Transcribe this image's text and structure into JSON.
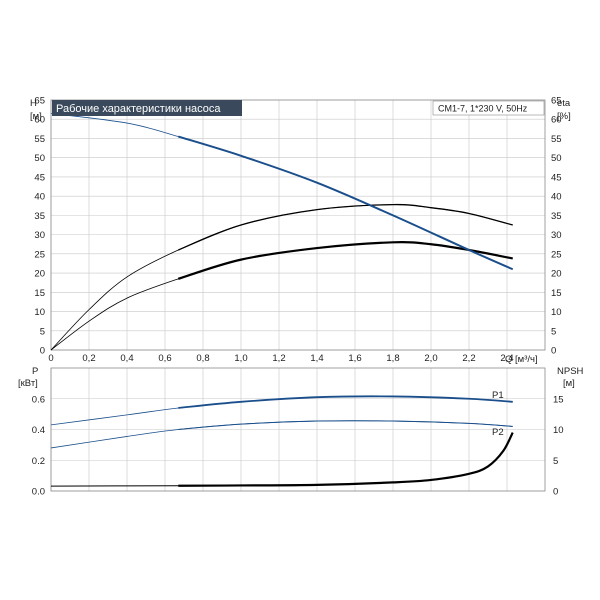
{
  "chart_data": [
    {
      "type": "line",
      "title": "Рабочие характеристики насоса",
      "model_label": "CM1-7, 1*230 V, 50Hz",
      "left_axis": {
        "label": "H",
        "unit": "[м]",
        "ylim": [
          0,
          65
        ],
        "ticks": [
          "0",
          "5",
          "10",
          "15",
          "20",
          "25",
          "30",
          "35",
          "40",
          "45",
          "50",
          "55",
          "60",
          "65"
        ]
      },
      "right_axis": {
        "label": "eta",
        "unit": "[%]",
        "ylim": [
          0,
          65
        ],
        "ticks": [
          "0",
          "5",
          "10",
          "15",
          "20",
          "25",
          "30",
          "35",
          "40",
          "45",
          "50",
          "55",
          "60",
          "65"
        ]
      },
      "x_axis": {
        "label": "Q [м³/ч]",
        "xlim": [
          0,
          2.6
        ],
        "ticks": [
          "0",
          "0,2",
          "0,4",
          "0,6",
          "0,8",
          "1,0",
          "1,2",
          "1,4",
          "1,6",
          "1,8",
          "2,0",
          "2,2",
          "2,4"
        ]
      },
      "grid": true,
      "series": [
        {
          "name": "",
          "axis": "left",
          "color": "#1a4f8c",
          "x": [
            0,
            0.4,
            0.67,
            1.0,
            1.4,
            1.8,
            2.2,
            2.43
          ],
          "y": [
            61.5,
            59.0,
            55.5,
            50.5,
            43.5,
            35.0,
            26.0,
            21.0
          ]
        },
        {
          "name": "",
          "axis": "right",
          "color": "#000000",
          "x": [
            0,
            0.2,
            0.4,
            0.67,
            1.0,
            1.4,
            1.8,
            2.0,
            2.2,
            2.43
          ],
          "y": [
            0,
            10.5,
            19.0,
            26.0,
            32.5,
            36.5,
            37.8,
            37.0,
            35.5,
            32.5
          ]
        },
        {
          "name": "",
          "axis": "right",
          "color": "#000000",
          "x": [
            0,
            0.2,
            0.4,
            0.67,
            1.0,
            1.4,
            1.8,
            2.0,
            2.2,
            2.43
          ],
          "y": [
            0,
            7.5,
            13.5,
            18.5,
            23.5,
            26.5,
            28.0,
            27.5,
            26.0,
            23.8
          ]
        }
      ]
    },
    {
      "type": "line",
      "left_axis": {
        "label": "P",
        "unit": "[кВт]",
        "ylim": [
          0,
          0.8
        ],
        "ticks": [
          "0.0",
          "0.2",
          "0.4",
          "0.6"
        ]
      },
      "right_axis": {
        "label": "NPSH",
        "unit": "[м]",
        "ylim": [
          0,
          20
        ],
        "ticks": [
          "0",
          "5",
          "10",
          "15"
        ]
      },
      "x_axis": {
        "xlim": [
          0,
          2.6
        ]
      },
      "grid": true,
      "series": [
        {
          "name": "P1",
          "axis": "left",
          "color": "#1a4f8c",
          "x": [
            0,
            0.4,
            0.67,
            1.0,
            1.4,
            1.8,
            2.2,
            2.43
          ],
          "y": [
            0.43,
            0.495,
            0.54,
            0.58,
            0.61,
            0.615,
            0.6,
            0.58
          ]
        },
        {
          "name": "P2",
          "axis": "left",
          "color": "#1a4f8c",
          "x": [
            0,
            0.4,
            0.67,
            1.0,
            1.4,
            1.8,
            2.2,
            2.43
          ],
          "y": [
            0.28,
            0.355,
            0.4,
            0.435,
            0.455,
            0.455,
            0.44,
            0.42
          ]
        },
        {
          "name": "",
          "axis": "right",
          "color": "#000000",
          "x": [
            0,
            0.67,
            1.0,
            1.4,
            1.8,
            2.0,
            2.2,
            2.3,
            2.38,
            2.43
          ],
          "y": [
            0.8,
            0.85,
            0.9,
            1.0,
            1.4,
            1.8,
            2.8,
            4.0,
            6.5,
            9.5
          ]
        }
      ]
    }
  ]
}
